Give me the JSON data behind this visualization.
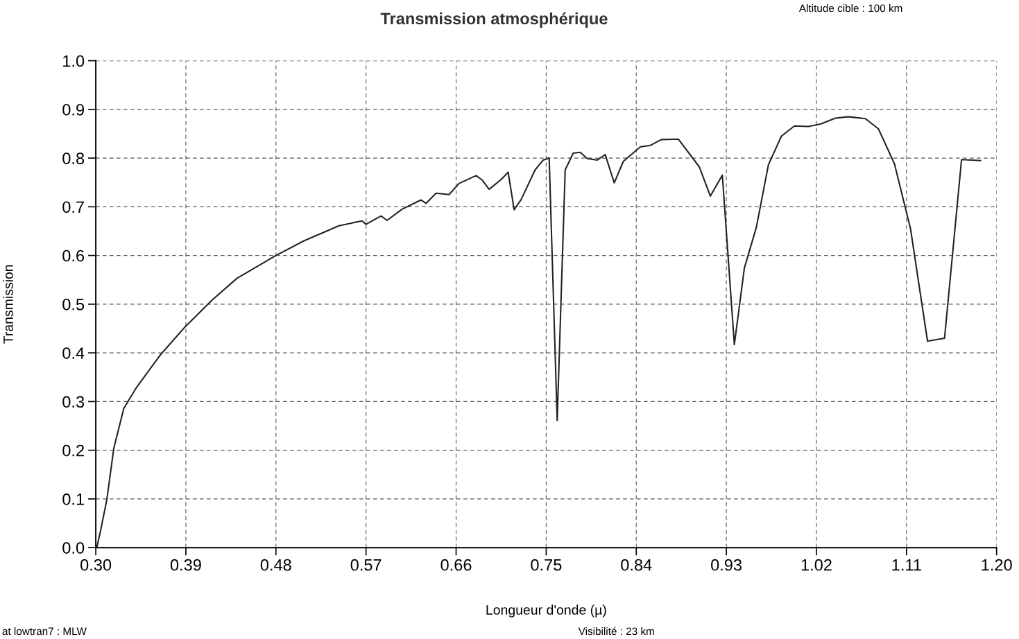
{
  "chart_data": {
    "type": "line",
    "title": "Transmission atmosphérique",
    "xlabel": "Longueur d'onde (µ)",
    "ylabel": "Transmission",
    "annotations": [
      "Altitude cible : 100 km",
      "at lowtran7 : MLW",
      "Visibilité : 23 km"
    ],
    "series": [
      {
        "color": "#222222",
        "x": [
          0.301,
          0.305,
          0.311,
          0.318,
          0.328,
          0.341,
          0.365,
          0.389,
          0.416,
          0.441,
          0.48,
          0.508,
          0.543,
          0.566,
          0.57,
          0.585,
          0.591,
          0.606,
          0.625,
          0.63,
          0.64,
          0.653,
          0.663,
          0.68,
          0.686,
          0.693,
          0.705,
          0.712,
          0.718,
          0.725,
          0.739,
          0.747,
          0.753,
          0.761,
          0.769,
          0.777,
          0.784,
          0.791,
          0.801,
          0.809,
          0.818,
          0.827,
          0.844,
          0.854,
          0.865,
          0.882,
          0.903,
          0.914,
          0.926,
          0.938,
          0.948,
          0.96,
          0.972,
          0.985,
          0.998,
          1.012,
          1.024,
          1.039,
          1.052,
          1.069,
          1.082,
          1.098,
          1.114,
          1.131,
          1.148,
          1.165,
          1.184
        ],
        "values": [
          0.0,
          0.037,
          0.098,
          0.204,
          0.286,
          0.33,
          0.397,
          0.453,
          0.508,
          0.553,
          0.6,
          0.63,
          0.661,
          0.671,
          0.664,
          0.681,
          0.672,
          0.695,
          0.714,
          0.707,
          0.728,
          0.725,
          0.748,
          0.764,
          0.755,
          0.736,
          0.756,
          0.771,
          0.694,
          0.715,
          0.776,
          0.796,
          0.8,
          0.261,
          0.776,
          0.81,
          0.812,
          0.799,
          0.796,
          0.807,
          0.749,
          0.793,
          0.823,
          0.826,
          0.838,
          0.839,
          0.782,
          0.722,
          0.765,
          0.417,
          0.574,
          0.658,
          0.786,
          0.845,
          0.866,
          0.865,
          0.87,
          0.882,
          0.885,
          0.881,
          0.86,
          0.788,
          0.655,
          0.424,
          0.43,
          0.797,
          0.795
        ]
      }
    ],
    "xlim": [
      0.3,
      1.2
    ],
    "xticks": [
      {
        "value": 0.3,
        "label": "0.30"
      },
      {
        "value": 0.39,
        "label": "0.39"
      },
      {
        "value": 0.48,
        "label": "0.48"
      },
      {
        "value": 0.57,
        "label": "0.57"
      },
      {
        "value": 0.66,
        "label": "0.66"
      },
      {
        "value": 0.75,
        "label": "0.75"
      },
      {
        "value": 0.84,
        "label": "0.84"
      },
      {
        "value": 0.93,
        "label": "0.93"
      },
      {
        "value": 1.02,
        "label": "1.02"
      },
      {
        "value": 1.11,
        "label": "1.11"
      },
      {
        "value": 1.2,
        "label": "1.20"
      }
    ],
    "ylim": [
      0.0,
      1.0
    ],
    "yticks": [
      {
        "value": 0.0,
        "label": "0.0"
      },
      {
        "value": 0.1,
        "label": "0.1"
      },
      {
        "value": 0.2,
        "label": "0.2"
      },
      {
        "value": 0.3,
        "label": "0.3"
      },
      {
        "value": 0.4,
        "label": "0.4"
      },
      {
        "value": 0.5,
        "label": "0.5"
      },
      {
        "value": 0.6,
        "label": "0.6"
      },
      {
        "value": 0.7,
        "label": "0.7"
      },
      {
        "value": 0.8,
        "label": "0.8"
      },
      {
        "value": 0.9,
        "label": "0.9"
      },
      {
        "value": 1.0,
        "label": "1.0"
      }
    ],
    "grid": true,
    "line_style": "solid",
    "marker": "none"
  }
}
